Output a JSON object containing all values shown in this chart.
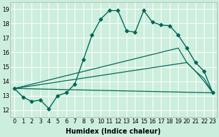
{
  "xlabel": "Humidex (Indice chaleur)",
  "bg_color": "#cceedd",
  "line_color": "#006655",
  "grid_color": "#ffffff",
  "xlim": [
    -0.5,
    23.5
  ],
  "ylim": [
    11.5,
    19.5
  ],
  "yticks": [
    12,
    13,
    14,
    15,
    16,
    17,
    18,
    19
  ],
  "xticks": [
    0,
    1,
    2,
    3,
    4,
    5,
    6,
    7,
    8,
    9,
    10,
    11,
    12,
    13,
    14,
    15,
    16,
    17,
    18,
    19,
    20,
    21,
    22,
    23
  ],
  "main_x": [
    0,
    1,
    2,
    3,
    4,
    5,
    6,
    7,
    8,
    9,
    10,
    11,
    12,
    13,
    14,
    15,
    16,
    17,
    18,
    19,
    20,
    21,
    22,
    23
  ],
  "main_y": [
    13.5,
    12.9,
    12.6,
    12.7,
    12.1,
    13.0,
    13.2,
    13.8,
    15.5,
    17.2,
    18.3,
    18.9,
    18.9,
    17.5,
    17.4,
    18.9,
    18.1,
    17.9,
    17.85,
    17.2,
    16.3,
    15.3,
    14.7,
    13.2
  ],
  "line1_x": [
    0,
    23
  ],
  "line1_y": [
    13.5,
    13.2
  ],
  "line2_x": [
    0,
    20,
    21,
    22,
    23
  ],
  "line2_y": [
    13.5,
    15.3,
    14.7,
    14.2,
    13.2
  ],
  "line3_x": [
    0,
    19,
    20,
    21,
    22,
    23
  ],
  "line3_y": [
    13.5,
    16.3,
    15.3,
    14.7,
    14.0,
    13.2
  ],
  "axis_fontsize": 7,
  "tick_fontsize": 6
}
